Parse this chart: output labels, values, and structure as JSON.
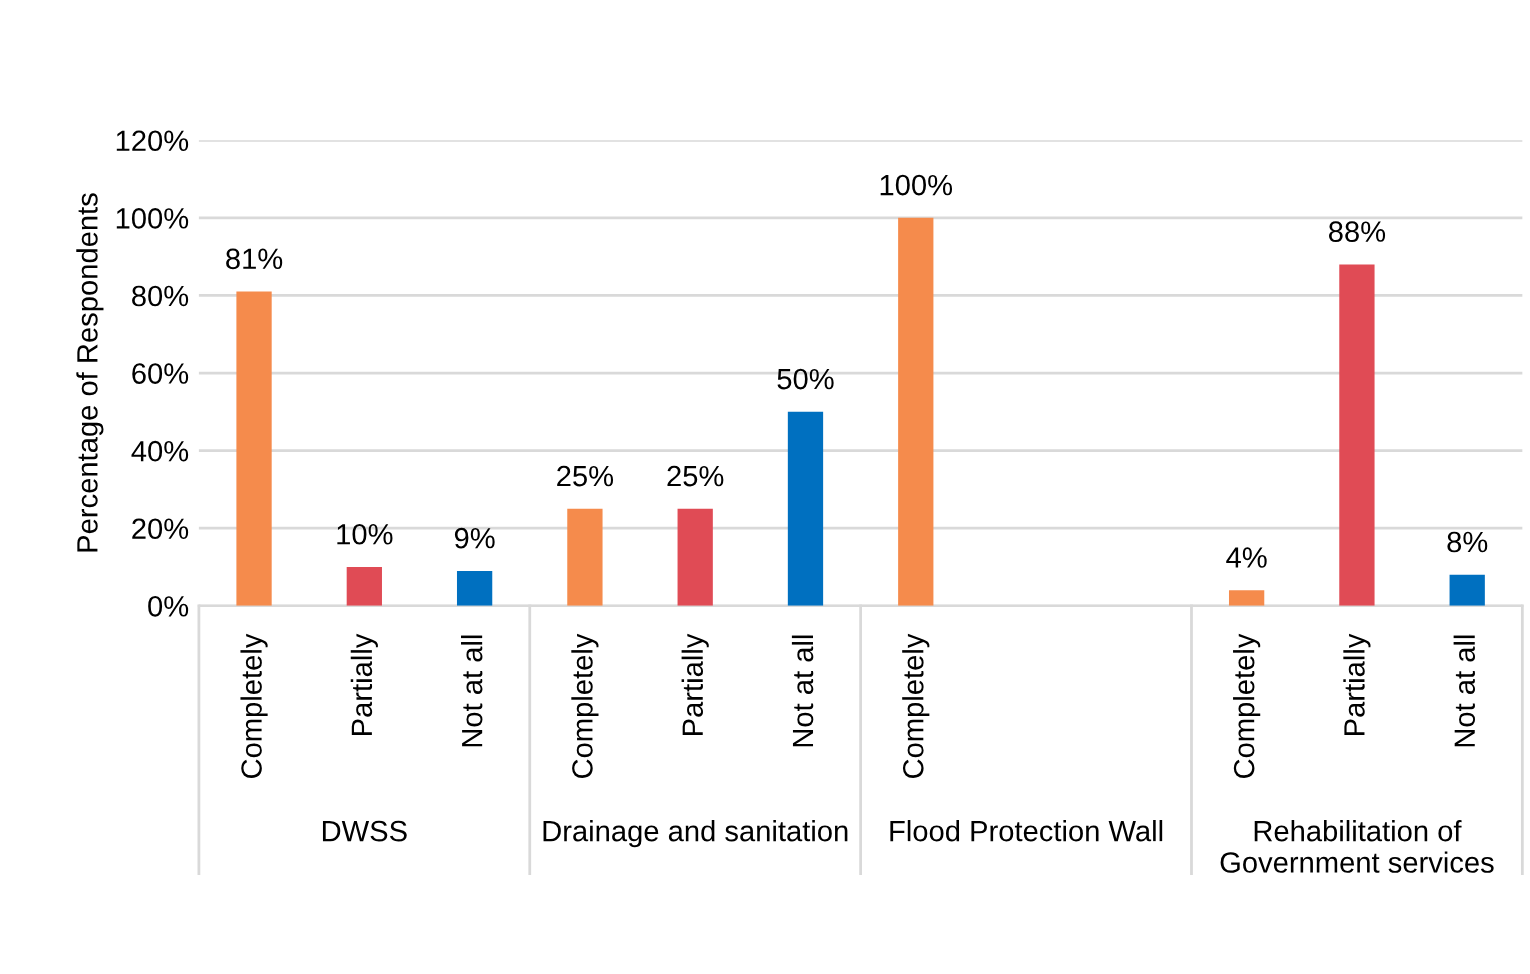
{
  "chart_data": {
    "type": "bar",
    "ylabel": "Percentage of Respondents",
    "categories": [
      "Completely",
      "Partially",
      "Not at all",
      "Completely",
      "Partially",
      "Not at all",
      "Completely",
      null,
      null,
      "Completely",
      "Partially",
      "Not at all"
    ],
    "values": [
      81,
      10,
      9,
      25,
      25,
      50,
      100,
      null,
      null,
      4,
      88,
      8
    ],
    "colors": [
      "#f58b4c",
      "#e04b55",
      "#0070c0",
      "#f58b4c",
      "#e04b55",
      "#0070c0",
      "#f58b4c",
      "#e04b55",
      "#0070c0",
      "#f58b4c",
      "#e04b55",
      "#0070c0"
    ],
    "value_labels": [
      "81%",
      "10%",
      "9%",
      "25%",
      "25%",
      "50%",
      "100%",
      null,
      null,
      "4%",
      "88%",
      "8%"
    ],
    "ylim": [
      0,
      120
    ],
    "yticks": [
      {
        "value": 0,
        "label": "0%"
      },
      {
        "value": 20,
        "label": "20%"
      },
      {
        "value": 40,
        "label": "40%"
      },
      {
        "value": 60,
        "label": "60%"
      },
      {
        "value": 80,
        "label": "80%"
      },
      {
        "value": 100,
        "label": "100%"
      },
      {
        "value": 120,
        "label": "120%"
      }
    ],
    "grid": "y",
    "annotations": [
      "DWSS",
      "Drainage and sanitation",
      "Flood Protection Wall",
      "Rehabilitation of\nGovernment services"
    ]
  }
}
